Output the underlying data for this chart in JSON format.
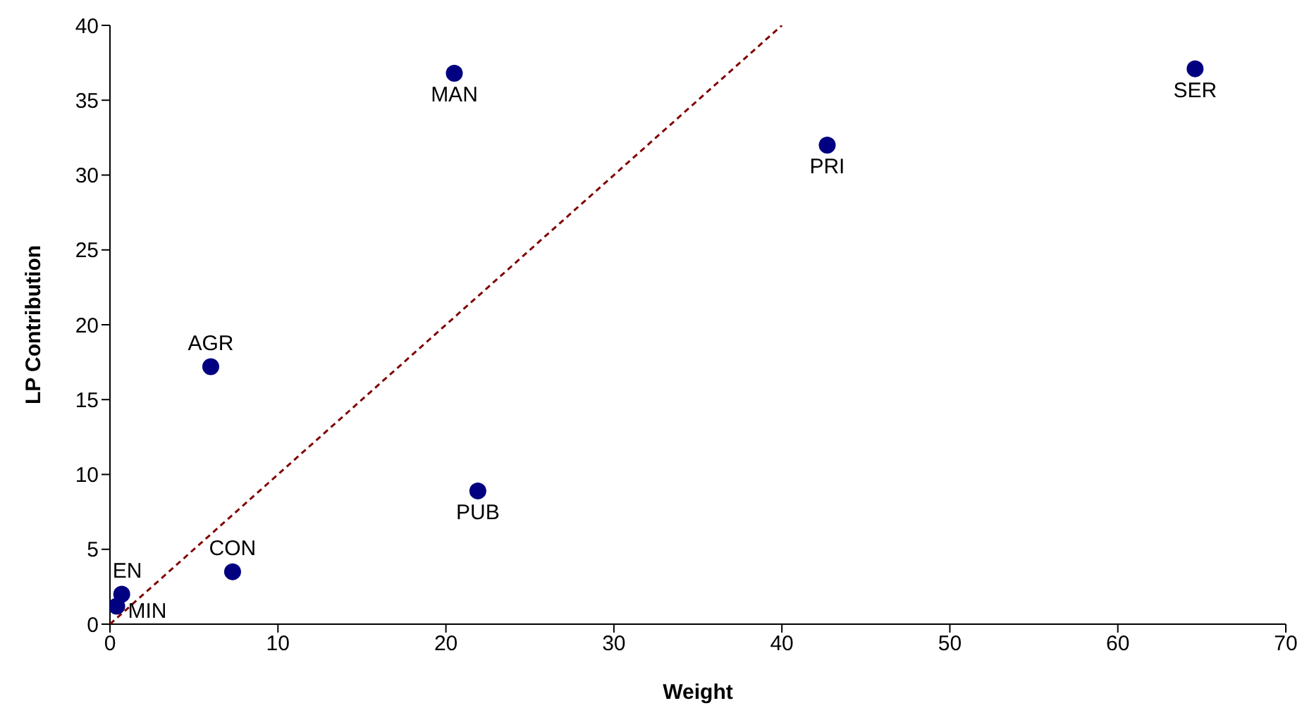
{
  "chart_data": {
    "type": "scatter",
    "xlabel": "Weight",
    "ylabel": "LP Contribution",
    "annotations": [
      {
        "text": "MAN",
        "x": 20.5,
        "y": 36.8
      },
      {
        "text": "SER",
        "x": 64.6,
        "y": 37.1
      },
      {
        "text": "PRI",
        "x": 42.7,
        "y": 32.0
      },
      {
        "text": "AGR",
        "x": 6.0,
        "y": 17.2
      },
      {
        "text": "PUB",
        "x": 21.9,
        "y": 8.9
      },
      {
        "text": "CON",
        "x": 7.3,
        "y": 3.5
      },
      {
        "text": "EN",
        "x": 0.7,
        "y": 2.0
      },
      {
        "text": "MIN",
        "x": 0.4,
        "y": 1.2
      }
    ],
    "xlim": [
      0,
      70
    ],
    "xticks": [
      0,
      10,
      20,
      30,
      40,
      50,
      60,
      70
    ],
    "ylim": [
      0,
      40
    ],
    "yticks": [
      0,
      5,
      10,
      15,
      20,
      25,
      30,
      35,
      40
    ],
    "grid": false,
    "legend": false,
    "series": [
      {
        "color": "#000080",
        "marker": "circle",
        "x": [
          20.5,
          64.6,
          42.7,
          6.0,
          21.9,
          7.3,
          0.7,
          0.4
        ],
        "values": [
          36.8,
          37.1,
          32.0,
          17.2,
          8.9,
          3.5,
          2.0,
          1.2
        ]
      },
      {
        "type": "line",
        "color": "#800000",
        "line_style": "dashed",
        "marker": "none",
        "x": [
          0,
          40
        ],
        "values": [
          0,
          40
        ]
      }
    ]
  }
}
